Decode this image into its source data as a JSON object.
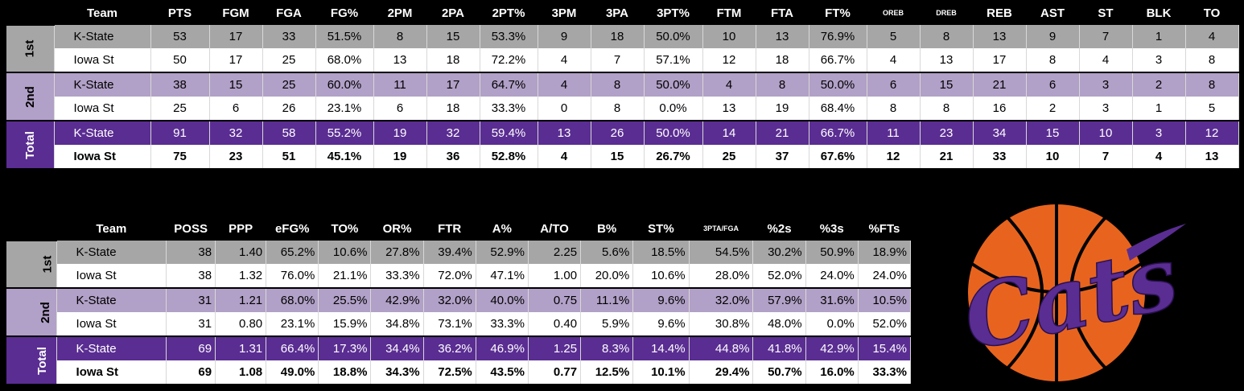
{
  "table1": {
    "headers": [
      "Team",
      "PTS",
      "FGM",
      "FGA",
      "FG%",
      "2PM",
      "2PA",
      "2PT%",
      "3PM",
      "3PA",
      "3PT%",
      "FTM",
      "FTA",
      "FT%",
      "OREB",
      "DREB",
      "REB",
      "AST",
      "ST",
      "BLK",
      "TO"
    ],
    "groups": [
      {
        "period": "1st",
        "rows": [
          {
            "team": "K-State",
            "vals": [
              "53",
              "17",
              "33",
              "51.5%",
              "8",
              "15",
              "53.3%",
              "9",
              "18",
              "50.0%",
              "10",
              "13",
              "76.9%",
              "5",
              "8",
              "13",
              "9",
              "7",
              "1",
              "4"
            ]
          },
          {
            "team": "Iowa St",
            "vals": [
              "50",
              "17",
              "25",
              "68.0%",
              "13",
              "18",
              "72.2%",
              "4",
              "7",
              "57.1%",
              "12",
              "18",
              "66.7%",
              "4",
              "13",
              "17",
              "8",
              "4",
              "3",
              "8"
            ]
          }
        ]
      },
      {
        "period": "2nd",
        "rows": [
          {
            "team": "K-State",
            "vals": [
              "38",
              "15",
              "25",
              "60.0%",
              "11",
              "17",
              "64.7%",
              "4",
              "8",
              "50.0%",
              "4",
              "8",
              "50.0%",
              "6",
              "15",
              "21",
              "6",
              "3",
              "2",
              "8"
            ]
          },
          {
            "team": "Iowa St",
            "vals": [
              "25",
              "6",
              "26",
              "23.1%",
              "6",
              "18",
              "33.3%",
              "0",
              "8",
              "0.0%",
              "13",
              "19",
              "68.4%",
              "8",
              "8",
              "16",
              "2",
              "3",
              "1",
              "5"
            ]
          }
        ]
      },
      {
        "period": "Total",
        "rows": [
          {
            "team": "K-State",
            "vals": [
              "91",
              "32",
              "58",
              "55.2%",
              "19",
              "32",
              "59.4%",
              "13",
              "26",
              "50.0%",
              "14",
              "21",
              "66.7%",
              "11",
              "23",
              "34",
              "15",
              "10",
              "3",
              "12"
            ]
          },
          {
            "team": "Iowa St",
            "vals": [
              "75",
              "23",
              "51",
              "45.1%",
              "19",
              "36",
              "52.8%",
              "4",
              "15",
              "26.7%",
              "25",
              "37",
              "67.6%",
              "12",
              "21",
              "33",
              "10",
              "7",
              "4",
              "13"
            ]
          }
        ]
      }
    ]
  },
  "table2": {
    "headers": [
      "Team",
      "POSS",
      "PPP",
      "eFG%",
      "TO%",
      "OR%",
      "FTR",
      "A%",
      "A/TO",
      "B%",
      "ST%",
      "3PTA/FGA",
      "%2s",
      "%3s",
      "%FTs"
    ],
    "groups": [
      {
        "period": "1st",
        "rows": [
          {
            "team": "K-State",
            "vals": [
              "38",
              "1.40",
              "65.2%",
              "10.6%",
              "27.8%",
              "39.4%",
              "52.9%",
              "2.25",
              "5.6%",
              "18.5%",
              "54.5%",
              "30.2%",
              "50.9%",
              "18.9%"
            ]
          },
          {
            "team": "Iowa St",
            "vals": [
              "38",
              "1.32",
              "76.0%",
              "21.1%",
              "33.3%",
              "72.0%",
              "47.1%",
              "1.00",
              "20.0%",
              "10.6%",
              "28.0%",
              "52.0%",
              "24.0%",
              "24.0%"
            ]
          }
        ]
      },
      {
        "period": "2nd",
        "rows": [
          {
            "team": "K-State",
            "vals": [
              "31",
              "1.21",
              "68.0%",
              "25.5%",
              "42.9%",
              "32.0%",
              "40.0%",
              "0.75",
              "11.1%",
              "9.6%",
              "32.0%",
              "57.9%",
              "31.6%",
              "10.5%"
            ]
          },
          {
            "team": "Iowa St",
            "vals": [
              "31",
              "0.80",
              "23.1%",
              "15.9%",
              "34.8%",
              "73.1%",
              "33.3%",
              "0.40",
              "5.9%",
              "9.6%",
              "30.8%",
              "48.0%",
              "0.0%",
              "52.0%"
            ]
          }
        ]
      },
      {
        "period": "Total",
        "rows": [
          {
            "team": "K-State",
            "vals": [
              "69",
              "1.31",
              "66.4%",
              "17.3%",
              "34.4%",
              "36.2%",
              "46.9%",
              "1.25",
              "8.3%",
              "14.4%",
              "44.8%",
              "41.8%",
              "42.9%",
              "15.4%"
            ]
          },
          {
            "team": "Iowa St",
            "vals": [
              "69",
              "1.08",
              "49.0%",
              "18.8%",
              "34.3%",
              "72.5%",
              "43.5%",
              "0.77",
              "12.5%",
              "10.1%",
              "29.4%",
              "50.7%",
              "16.0%",
              "33.3%"
            ]
          }
        ]
      }
    ]
  },
  "logo": {
    "text": "Cats",
    "ball_color": "#e8641e",
    "text_color": "#5a2d92"
  },
  "colors": {
    "gray": "#a6a6a6",
    "lavender": "#b1a0c7",
    "purple": "#5a2d92"
  }
}
